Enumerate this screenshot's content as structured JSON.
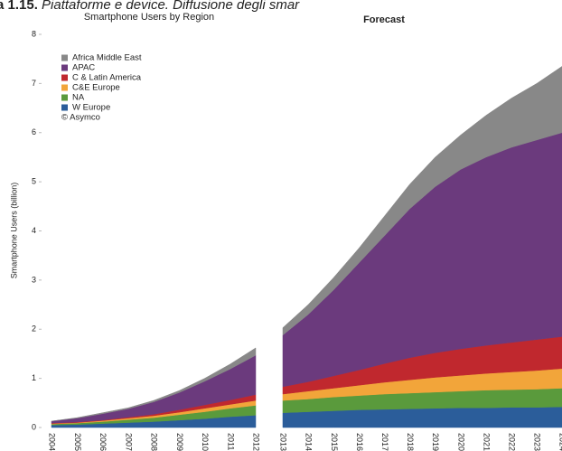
{
  "caption": {
    "number": "a 1.15.",
    "text": "Piattaforme e device. Diffusione degli smar"
  },
  "chart_data": [
    {
      "type": "stacked_area",
      "title": "Smartphone Users by Region",
      "ylabel": "Smartphone Users (billion)",
      "annotation": "© Asymco",
      "categories": [
        "2004",
        "2005",
        "2006",
        "2007",
        "2008",
        "2009",
        "2010",
        "2011",
        "2012"
      ],
      "ylim": [
        0,
        8
      ],
      "yticks": [
        0,
        1,
        2,
        3,
        4,
        5,
        6,
        7,
        8
      ],
      "series": [
        {
          "name": "W Europe",
          "color": "#2b5d9a",
          "values": [
            0.05,
            0.06,
            0.08,
            0.1,
            0.12,
            0.15,
            0.18,
            0.22,
            0.25
          ]
        },
        {
          "name": "NA",
          "color": "#5a9a3c",
          "values": [
            0.02,
            0.03,
            0.04,
            0.06,
            0.08,
            0.11,
            0.14,
            0.17,
            0.2
          ]
        },
        {
          "name": "C&E Europe",
          "color": "#f2a53a",
          "values": [
            0.01,
            0.01,
            0.02,
            0.03,
            0.04,
            0.05,
            0.07,
            0.08,
            0.1
          ]
        },
        {
          "name": "C & Latin America",
          "color": "#c0282e",
          "values": [
            0.01,
            0.01,
            0.01,
            0.02,
            0.03,
            0.05,
            0.07,
            0.09,
            0.12
          ]
        },
        {
          "name": "APAC",
          "color": "#6b3a7d",
          "values": [
            0.04,
            0.08,
            0.13,
            0.17,
            0.25,
            0.35,
            0.48,
            0.63,
            0.8
          ]
        },
        {
          "name": "Africa Middle East",
          "color": "#888888",
          "values": [
            0,
            0.01,
            0.02,
            0.02,
            0.03,
            0.04,
            0.06,
            0.1,
            0.15
          ]
        }
      ]
    },
    {
      "type": "stacked_area",
      "title": "Forecast",
      "categories": [
        "2013",
        "2014",
        "2015",
        "2016",
        "2017",
        "2018",
        "2019",
        "2020",
        "2021",
        "2022",
        "2023",
        "2024"
      ],
      "ylim": [
        0,
        8
      ],
      "series": [
        {
          "color": "#2b5d9a",
          "values": [
            0.3,
            0.32,
            0.34,
            0.36,
            0.37,
            0.38,
            0.39,
            0.4,
            0.4,
            0.41,
            0.41,
            0.42
          ]
        },
        {
          "color": "#5a9a3c",
          "values": [
            0.25,
            0.26,
            0.28,
            0.29,
            0.31,
            0.32,
            0.33,
            0.34,
            0.36,
            0.36,
            0.37,
            0.38
          ]
        },
        {
          "color": "#f2a53a",
          "values": [
            0.13,
            0.16,
            0.18,
            0.21,
            0.24,
            0.27,
            0.3,
            0.32,
            0.34,
            0.36,
            0.38,
            0.4
          ]
        },
        {
          "color": "#c0282e",
          "values": [
            0.15,
            0.19,
            0.25,
            0.31,
            0.38,
            0.45,
            0.5,
            0.54,
            0.57,
            0.6,
            0.63,
            0.65
          ]
        },
        {
          "color": "#6b3a7d",
          "values": [
            1.05,
            1.37,
            1.75,
            2.18,
            2.6,
            3.03,
            3.38,
            3.65,
            3.83,
            3.97,
            4.06,
            4.15
          ]
        },
        {
          "color": "#888888",
          "values": [
            0.15,
            0.2,
            0.25,
            0.3,
            0.4,
            0.5,
            0.6,
            0.7,
            0.85,
            1.0,
            1.15,
            1.35
          ]
        }
      ]
    }
  ]
}
